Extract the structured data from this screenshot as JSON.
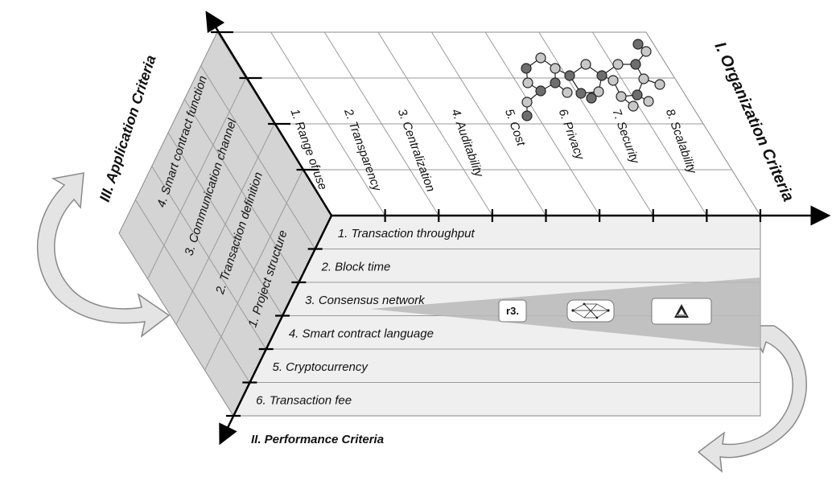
{
  "axes": {
    "organization": "I. Organization Criteria",
    "performance": "II. Performance Criteria",
    "application": "III. Application Criteria"
  },
  "organization_criteria": [
    "1. Range of use",
    "2. Transparency",
    "3. Centralization",
    "4. Auditability",
    "5. Cost",
    "6. Privacy",
    "7. Security",
    "8. Scalability"
  ],
  "performance_criteria": [
    "1. Transaction throughput",
    "2. Block time",
    "3. Consensus network",
    "4. Smart contract language",
    "5. Cryptocurrency",
    "6. Transaction fee"
  ],
  "application_criteria": [
    "1. Project structure",
    "2. Transaction definition",
    "3. Communication channel",
    "4. Smart contract function"
  ],
  "logos": [
    {
      "name": "r3-corda-logo",
      "text": "r3."
    },
    {
      "name": "network-mesh-logo",
      "text": ""
    },
    {
      "name": "ark-logo",
      "text": ""
    }
  ],
  "colors": {
    "grid_line": "#9a9a9a",
    "side_face": "#d4d4d4",
    "front_face": "#efefef",
    "arrow_fill": "#e4e4e4",
    "funnel": "#b9b9b9",
    "node_dark": "#6e6e6e",
    "node_light": "#c8c8c8"
  }
}
